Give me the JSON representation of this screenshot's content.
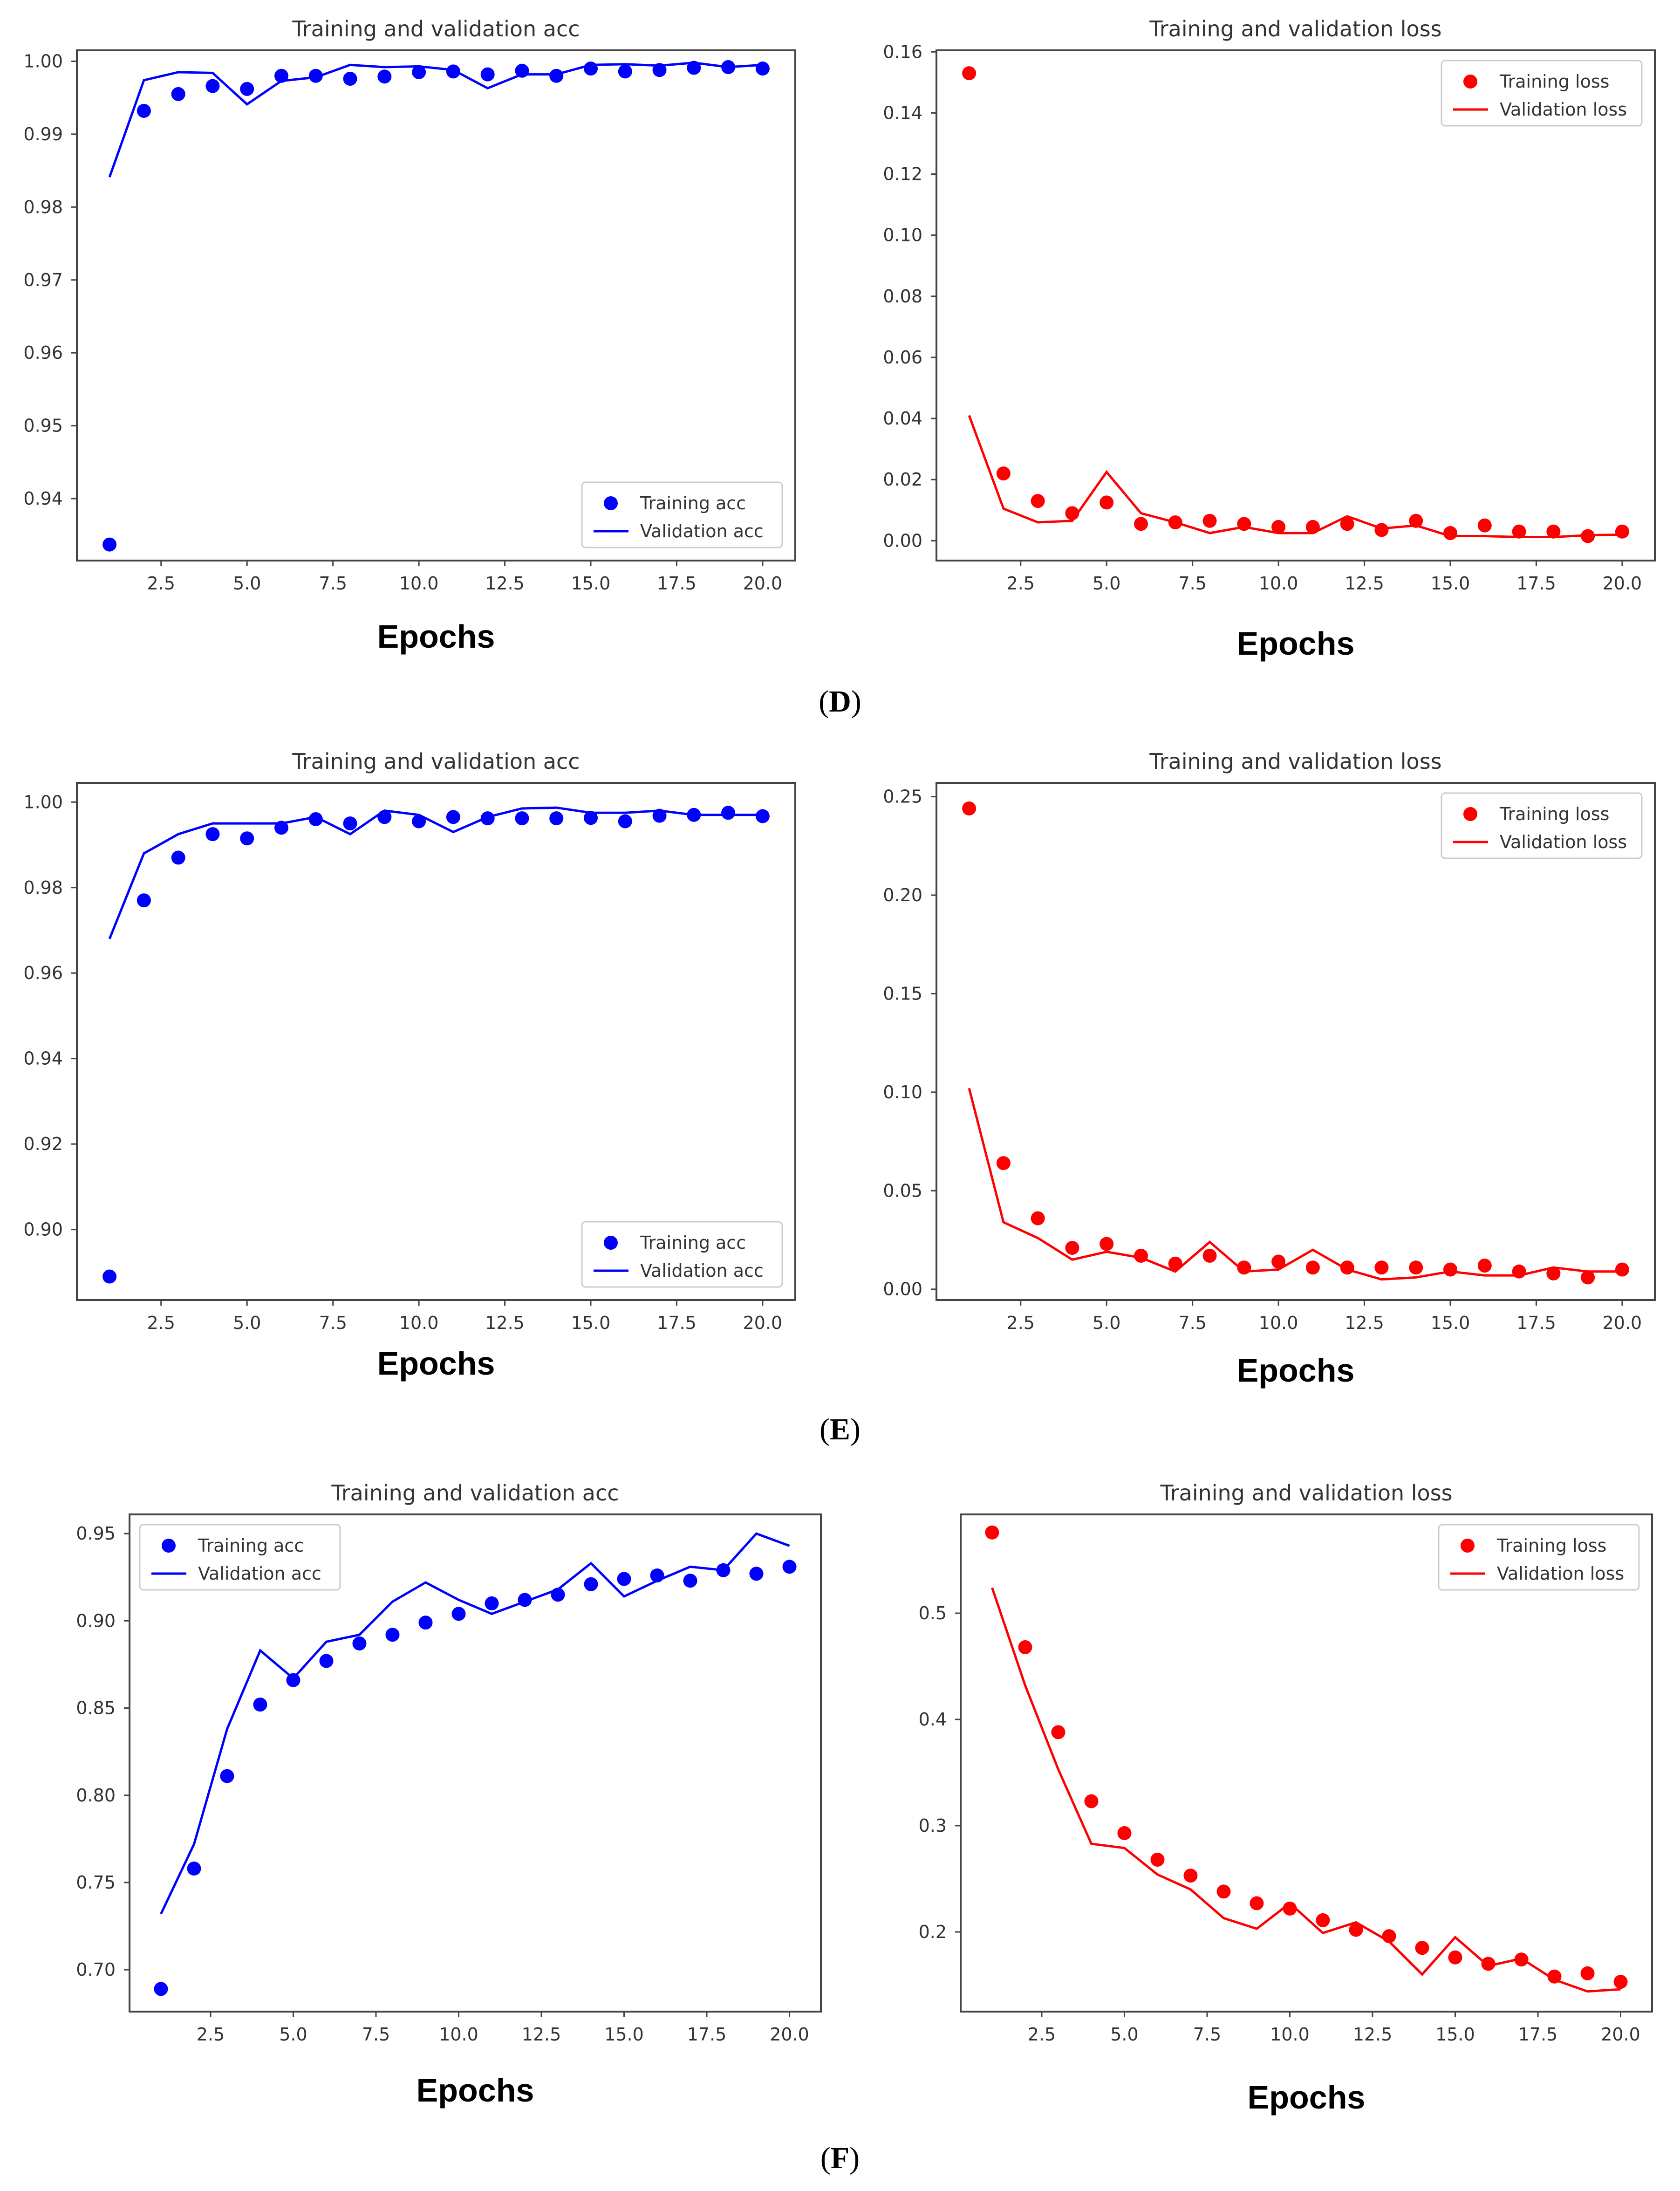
{
  "figure": {
    "panels": [
      {
        "label": "D"
      },
      {
        "label": "E"
      },
      {
        "label": "F"
      }
    ]
  },
  "colors": {
    "acc": "#0000ff",
    "loss": "#ff0000",
    "axis": "#444444",
    "text": "#333333"
  },
  "chart_data": [
    {
      "type": "line",
      "panel": "D",
      "title": "Training and validation acc",
      "xlabel": "Epochs",
      "ylabel": "",
      "xlim": [
        0.05,
        20.95
      ],
      "ylim": [
        0.9315,
        1.0015
      ],
      "xticks": [
        2.5,
        5.0,
        7.5,
        10.0,
        12.5,
        15.0,
        17.5,
        20.0
      ],
      "xtick_labels": [
        "2.5",
        "5.0",
        "7.5",
        "10.0",
        "12.5",
        "15.0",
        "17.5",
        "20.0"
      ],
      "yticks": [
        0.94,
        0.95,
        0.96,
        0.97,
        0.98,
        0.99,
        1.0
      ],
      "ytick_labels": [
        "0.94",
        "0.95",
        "0.96",
        "0.97",
        "0.98",
        "0.99",
        "1.00"
      ],
      "legend": "lower-right",
      "color": "#0000ff",
      "x": [
        1,
        2,
        3,
        4,
        5,
        6,
        7,
        8,
        9,
        10,
        11,
        12,
        13,
        14,
        15,
        16,
        17,
        18,
        19,
        20
      ],
      "series": [
        {
          "name": "Training acc",
          "style": "dots",
          "values": [
            0.9337,
            0.9932,
            0.9955,
            0.9966,
            0.9962,
            0.998,
            0.998,
            0.9976,
            0.9979,
            0.9985,
            0.9986,
            0.9982,
            0.9987,
            0.998,
            0.999,
            0.9986,
            0.9988,
            0.9991,
            0.9992,
            0.999
          ]
        },
        {
          "name": "Validation acc",
          "style": "line",
          "values": [
            0.9841,
            0.9974,
            0.9985,
            0.9984,
            0.9941,
            0.9973,
            0.9978,
            0.9995,
            0.9992,
            0.9993,
            0.9988,
            0.9963,
            0.9982,
            0.9982,
            0.9995,
            0.9996,
            0.9994,
            0.9998,
            0.9992,
            0.9995
          ]
        }
      ]
    },
    {
      "type": "line",
      "panel": "D",
      "title": "Training and validation loss",
      "xlabel": "Epochs",
      "ylabel": "",
      "xlim": [
        0.05,
        20.95
      ],
      "ylim": [
        -0.0065,
        0.1605
      ],
      "xticks": [
        2.5,
        5.0,
        7.5,
        10.0,
        12.5,
        15.0,
        17.5,
        20.0
      ],
      "xtick_labels": [
        "2.5",
        "5.0",
        "7.5",
        "10.0",
        "12.5",
        "15.0",
        "17.5",
        "20.0"
      ],
      "yticks": [
        0.0,
        0.02,
        0.04,
        0.06,
        0.08,
        0.1,
        0.12,
        0.14,
        0.16
      ],
      "ytick_labels": [
        "0.00",
        "0.02",
        "0.04",
        "0.06",
        "0.08",
        "0.10",
        "0.12",
        "0.14",
        "0.16"
      ],
      "legend": "top-right",
      "color": "#ff0000",
      "x": [
        1,
        2,
        3,
        4,
        5,
        6,
        7,
        8,
        9,
        10,
        11,
        12,
        13,
        14,
        15,
        16,
        17,
        18,
        19,
        20
      ],
      "series": [
        {
          "name": "Training loss",
          "style": "dots",
          "values": [
            0.153,
            0.022,
            0.013,
            0.009,
            0.0125,
            0.0055,
            0.006,
            0.0065,
            0.0055,
            0.0045,
            0.0045,
            0.0055,
            0.0035,
            0.0065,
            0.0025,
            0.005,
            0.003,
            0.003,
            0.0015,
            0.003
          ]
        },
        {
          "name": "Validation loss",
          "style": "line",
          "values": [
            0.041,
            0.0105,
            0.006,
            0.0065,
            0.0225,
            0.009,
            0.006,
            0.0025,
            0.0045,
            0.0025,
            0.0025,
            0.008,
            0.004,
            0.005,
            0.0015,
            0.0015,
            0.0012,
            0.0012,
            0.0018,
            0.002
          ]
        }
      ]
    },
    {
      "type": "line",
      "panel": "E",
      "title": "Training and validation acc",
      "xlabel": "Epochs",
      "ylabel": "",
      "xlim": [
        0.05,
        20.95
      ],
      "ylim": [
        0.8835,
        1.0045
      ],
      "xticks": [
        2.5,
        5.0,
        7.5,
        10.0,
        12.5,
        15.0,
        17.5,
        20.0
      ],
      "xtick_labels": [
        "2.5",
        "5.0",
        "7.5",
        "10.0",
        "12.5",
        "15.0",
        "17.5",
        "20.0"
      ],
      "yticks": [
        0.9,
        0.92,
        0.94,
        0.96,
        0.98,
        1.0
      ],
      "ytick_labels": [
        "0.90",
        "0.92",
        "0.94",
        "0.96",
        "0.98",
        "1.00"
      ],
      "legend": "lower-right",
      "color": "#0000ff",
      "x": [
        1,
        2,
        3,
        4,
        5,
        6,
        7,
        8,
        9,
        10,
        11,
        12,
        13,
        14,
        15,
        16,
        17,
        18,
        19,
        20
      ],
      "series": [
        {
          "name": "Training acc",
          "style": "dots",
          "values": [
            0.889,
            0.977,
            0.987,
            0.9925,
            0.9915,
            0.994,
            0.996,
            0.995,
            0.9965,
            0.9955,
            0.9965,
            0.9962,
            0.9962,
            0.9962,
            0.9963,
            0.9955,
            0.9968,
            0.997,
            0.9975,
            0.9967
          ]
        },
        {
          "name": "Validation acc",
          "style": "line",
          "values": [
            0.968,
            0.988,
            0.9925,
            0.995,
            0.995,
            0.995,
            0.9965,
            0.9925,
            0.998,
            0.997,
            0.993,
            0.9965,
            0.9985,
            0.9987,
            0.9975,
            0.9975,
            0.998,
            0.997,
            0.997,
            0.997
          ]
        }
      ]
    },
    {
      "type": "line",
      "panel": "E",
      "title": "Training and validation loss",
      "xlabel": "Epochs",
      "ylabel": "",
      "xlim": [
        0.05,
        20.95
      ],
      "ylim": [
        -0.0055,
        0.257
      ],
      "xticks": [
        2.5,
        5.0,
        7.5,
        10.0,
        12.5,
        15.0,
        17.5,
        20.0
      ],
      "xtick_labels": [
        "2.5",
        "5.0",
        "7.5",
        "10.0",
        "12.5",
        "15.0",
        "17.5",
        "20.0"
      ],
      "yticks": [
        0.0,
        0.05,
        0.1,
        0.15,
        0.2,
        0.25
      ],
      "ytick_labels": [
        "0.00",
        "0.05",
        "0.10",
        "0.15",
        "0.20",
        "0.25"
      ],
      "legend": "top-right",
      "color": "#ff0000",
      "x": [
        1,
        2,
        3,
        4,
        5,
        6,
        7,
        8,
        9,
        10,
        11,
        12,
        13,
        14,
        15,
        16,
        17,
        18,
        19,
        20
      ],
      "series": [
        {
          "name": "Training loss",
          "style": "dots",
          "values": [
            0.244,
            0.064,
            0.036,
            0.021,
            0.023,
            0.017,
            0.013,
            0.017,
            0.011,
            0.014,
            0.011,
            0.011,
            0.011,
            0.011,
            0.01,
            0.012,
            0.009,
            0.008,
            0.006,
            0.01
          ]
        },
        {
          "name": "Validation loss",
          "style": "line",
          "values": [
            0.102,
            0.034,
            0.026,
            0.015,
            0.019,
            0.016,
            0.009,
            0.024,
            0.009,
            0.01,
            0.02,
            0.01,
            0.005,
            0.006,
            0.009,
            0.007,
            0.007,
            0.011,
            0.009,
            0.009
          ]
        }
      ]
    },
    {
      "type": "line",
      "panel": "F",
      "title": "Training and validation acc",
      "xlabel": "Epochs",
      "ylabel": "",
      "xlim": [
        0.05,
        20.95
      ],
      "ylim": [
        0.676,
        0.961
      ],
      "xticks": [
        2.5,
        5.0,
        7.5,
        10.0,
        12.5,
        15.0,
        17.5,
        20.0
      ],
      "xtick_labels": [
        "2.5",
        "5.0",
        "7.5",
        "10.0",
        "12.5",
        "15.0",
        "17.5",
        "20.0"
      ],
      "yticks": [
        0.7,
        0.75,
        0.8,
        0.85,
        0.9,
        0.95
      ],
      "ytick_labels": [
        "0.70",
        "0.75",
        "0.80",
        "0.85",
        "0.90",
        "0.95"
      ],
      "legend": "top-left",
      "color": "#0000ff",
      "x": [
        1,
        2,
        3,
        4,
        5,
        6,
        7,
        8,
        9,
        10,
        11,
        12,
        13,
        14,
        15,
        16,
        17,
        18,
        19,
        20
      ],
      "series": [
        {
          "name": "Training acc",
          "style": "dots",
          "values": [
            0.689,
            0.758,
            0.811,
            0.852,
            0.866,
            0.877,
            0.887,
            0.892,
            0.899,
            0.904,
            0.91,
            0.912,
            0.915,
            0.921,
            0.924,
            0.926,
            0.923,
            0.929,
            0.927,
            0.931
          ]
        },
        {
          "name": "Validation acc",
          "style": "line",
          "values": [
            0.732,
            0.772,
            0.838,
            0.883,
            0.867,
            0.888,
            0.892,
            0.911,
            0.922,
            0.912,
            0.904,
            0.911,
            0.918,
            0.933,
            0.914,
            0.923,
            0.931,
            0.929,
            0.95,
            0.943
          ]
        }
      ]
    },
    {
      "type": "line",
      "panel": "F",
      "title": "Training and validation loss",
      "xlabel": "Epochs",
      "ylabel": "",
      "xlim": [
        0.05,
        20.95
      ],
      "ylim": [
        0.125,
        0.593
      ],
      "xticks": [
        2.5,
        5.0,
        7.5,
        10.0,
        12.5,
        15.0,
        17.5,
        20.0
      ],
      "xtick_labels": [
        "2.5",
        "5.0",
        "7.5",
        "10.0",
        "12.5",
        "15.0",
        "17.5",
        "20.0"
      ],
      "yticks": [
        0.2,
        0.3,
        0.4,
        0.5
      ],
      "ytick_labels": [
        "0.2",
        "0.3",
        "0.4",
        "0.5"
      ],
      "legend": "top-right",
      "color": "#ff0000",
      "x": [
        1,
        2,
        3,
        4,
        5,
        6,
        7,
        8,
        9,
        10,
        11,
        12,
        13,
        14,
        15,
        16,
        17,
        18,
        19,
        20
      ],
      "series": [
        {
          "name": "Training loss",
          "style": "dots",
          "values": [
            0.576,
            0.468,
            0.388,
            0.323,
            0.293,
            0.268,
            0.253,
            0.238,
            0.227,
            0.222,
            0.211,
            0.202,
            0.196,
            0.185,
            0.176,
            0.17,
            0.174,
            0.158,
            0.161,
            0.153
          ]
        },
        {
          "name": "Validation loss",
          "style": "line",
          "values": [
            0.524,
            0.432,
            0.353,
            0.283,
            0.279,
            0.254,
            0.24,
            0.213,
            0.203,
            0.227,
            0.199,
            0.209,
            0.191,
            0.16,
            0.195,
            0.168,
            0.175,
            0.155,
            0.144,
            0.146
          ]
        }
      ]
    }
  ]
}
